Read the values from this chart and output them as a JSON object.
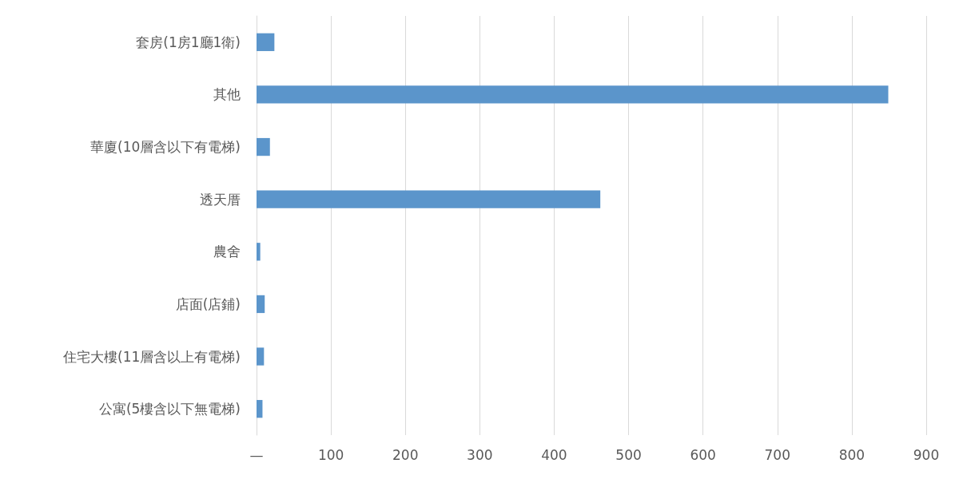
{
  "chart_data": {
    "type": "bar",
    "orientation": "horizontal",
    "categories": [
      "套房(1房1廳1衛)",
      "其他",
      "華廈(10層含以下有電梯)",
      "透天厝",
      "農舍",
      "店面(店鋪)",
      "住宅大樓(11層含以上有電梯)",
      "公寓(5樓含以下無電梯)"
    ],
    "values": [
      24,
      849,
      18,
      462,
      5,
      11,
      10,
      8
    ],
    "color": "#5b95cb",
    "xlim": [
      0,
      900
    ],
    "xticks": [
      {
        "value": 0,
        "label": "—"
      },
      100,
      200,
      300,
      400,
      500,
      600,
      700,
      800,
      900
    ],
    "grid": "x"
  }
}
